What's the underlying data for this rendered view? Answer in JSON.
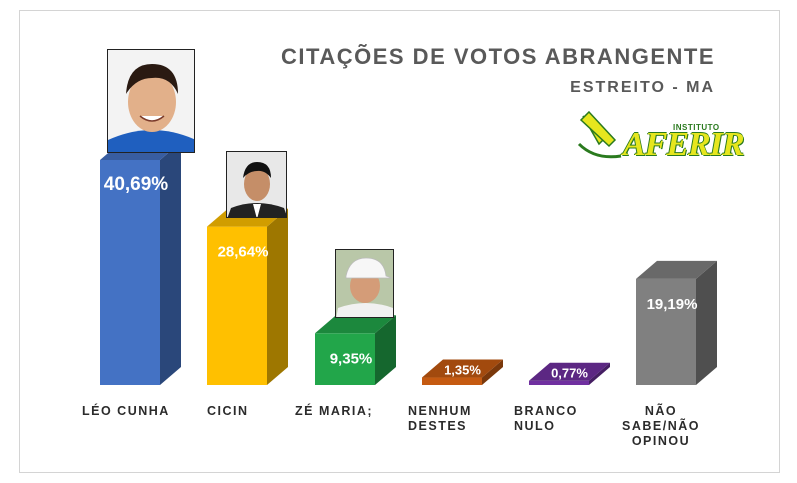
{
  "chart_data": {
    "type": "bar",
    "title": "CITAÇÕES DE VOTOS ABRANGENTE",
    "subtitle": "ESTREITO - MA",
    "categories": [
      "LÉO CUNHA",
      "CICIN",
      "ZÉ MARIA;",
      "NENHUM\nDESTES",
      "BRANCO\nNULO",
      "NÃO\nSABE/NÃO\nOPINOU"
    ],
    "values": [
      40.69,
      28.64,
      9.35,
      1.35,
      0.77,
      19.19
    ],
    "data_labels": [
      "40,69%",
      "28,64%",
      "9,35%",
      "1,35%",
      "0,77%",
      "19,19%"
    ],
    "colors": [
      "#4472c4",
      "#ffc000",
      "#22a64a",
      "#c55a11",
      "#7030a0",
      "#808080"
    ],
    "ylim": [
      0,
      45
    ],
    "grid": false,
    "legend": "none"
  },
  "logo": {
    "prefix": "INSTITUTO",
    "name": "AFERIR"
  },
  "photos": [
    "leo-cunha-photo",
    "cicin-photo",
    "ze-maria-photo"
  ]
}
